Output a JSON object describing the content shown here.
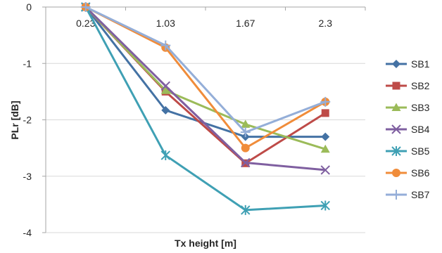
{
  "chart_data": {
    "type": "line",
    "title": "",
    "xlabel": "Tx height [m]",
    "ylabel": "PLr [dB]",
    "categories": [
      "0.23",
      "1.03",
      "1.67",
      "2.3"
    ],
    "ylim": [
      -4,
      0
    ],
    "yticks": [
      0,
      -1,
      -2,
      -3,
      -4
    ],
    "x_tick_position": "top",
    "grid": "horizontal",
    "legend_position": "right",
    "series": [
      {
        "name": "SB1",
        "color": "#4472A4",
        "marker": "diamond",
        "values": [
          0,
          -1.83,
          -2.3,
          -2.3
        ]
      },
      {
        "name": "SB2",
        "color": "#BE4B48",
        "marker": "square",
        "values": [
          0,
          -1.5,
          -2.77,
          -1.88
        ]
      },
      {
        "name": "SB3",
        "color": "#9BBB59",
        "marker": "triangle",
        "values": [
          0,
          -1.48,
          -2.08,
          -2.52
        ]
      },
      {
        "name": "SB4",
        "color": "#7F5FA0",
        "marker": "x",
        "values": [
          0,
          -1.4,
          -2.76,
          -2.89
        ]
      },
      {
        "name": "SB5",
        "color": "#3FA0B4",
        "marker": "star",
        "values": [
          0,
          -2.63,
          -3.6,
          -3.52
        ]
      },
      {
        "name": "SB6",
        "color": "#F08C3A",
        "marker": "circle",
        "values": [
          0,
          -0.72,
          -2.5,
          -1.68
        ]
      },
      {
        "name": "SB7",
        "color": "#94AED8",
        "marker": "plus",
        "values": [
          0,
          -0.68,
          -2.22,
          -1.68
        ]
      }
    ]
  }
}
